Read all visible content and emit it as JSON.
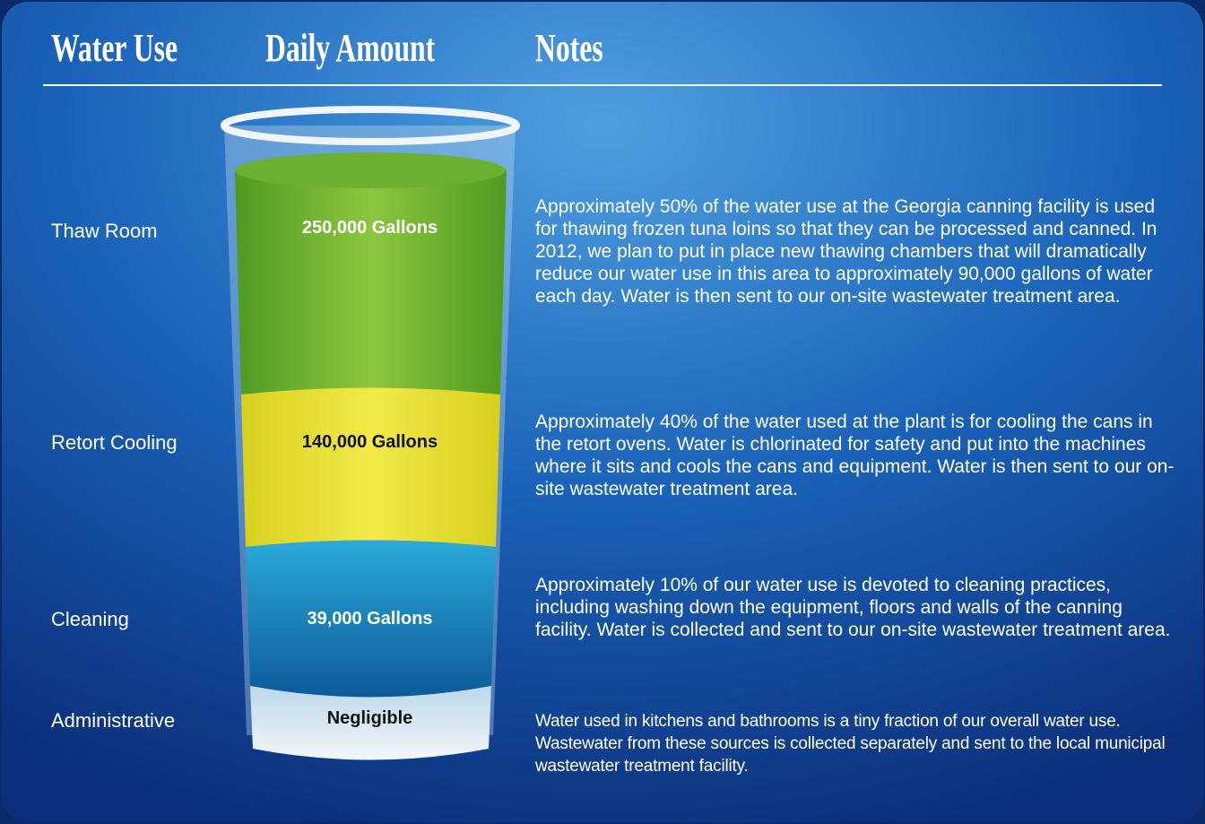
{
  "header": {
    "columns": [
      "Water Use",
      "Daily Amount",
      "Notes"
    ]
  },
  "rows": [
    {
      "use": "Thaw Room",
      "amount": "250,000 Gallons",
      "notes": "Approximately 50% of the water use at the Georgia canning facility is used for thawing frozen tuna loins so that they can be processed and canned. In 2012, we plan to put in place new thawing chambers that will dramatically reduce our water use in this area to approximately 90,000 gallons of water each day. Water is then sent to our on-site wastewater treatment area."
    },
    {
      "use": "Retort Cooling",
      "amount": "140,000 Gallons",
      "notes": "Approximately 40% of the water used at the plant is for cooling the cans in the retort ovens. Water is chlorinated for safety and put into the machines where it sits and cools the cans and equipment. Water is then sent to our on-site wastewater treatment area."
    },
    {
      "use": "Cleaning",
      "amount": "39,000 Gallons",
      "notes": "Approximately 10% of our water use is devoted to cleaning practices, including washing down the equipment, floors and walls of the canning facility. Water is collected and sent to our on-site wastewater treatment area."
    },
    {
      "use": "Administrative",
      "amount": "Negligible",
      "notes": "Water used in kitchens and bathrooms is a tiny fraction of our overall water use. Wastewater from these sources is collected separately and sent to the local municipal wastewater treatment facility."
    }
  ]
}
